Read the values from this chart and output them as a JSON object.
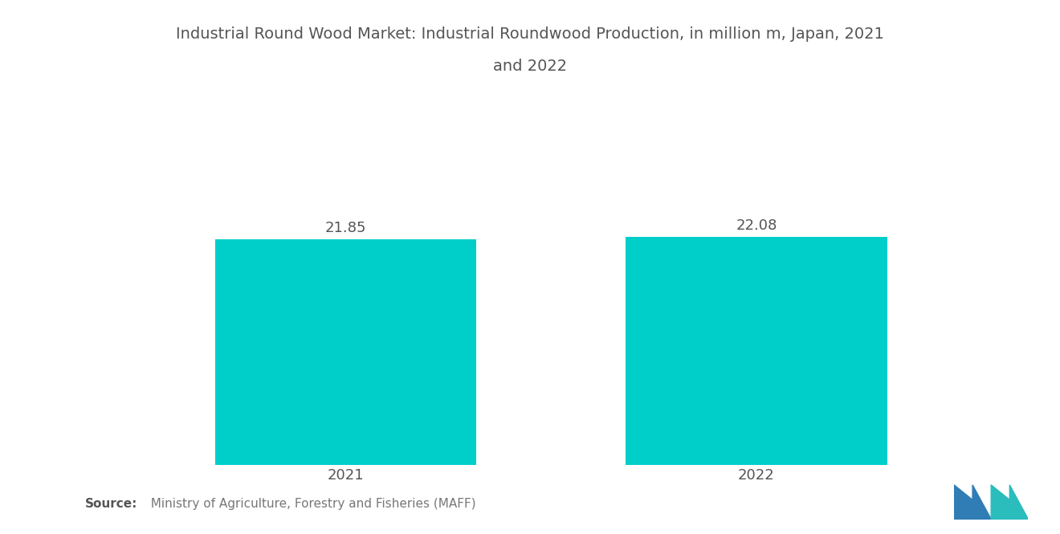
{
  "title_line1": "Industrial Round Wood Market: Industrial Roundwood Production, in million m, Japan, 2021",
  "title_line2": "and 2022",
  "categories": [
    "2021",
    "2022"
  ],
  "values": [
    21.85,
    22.08
  ],
  "bar_color": "#00CEC9",
  "bar_width": 0.28,
  "value_labels": [
    "21.85",
    "22.08"
  ],
  "source_text": "  Ministry of Agriculture, Forestry and Fisheries (MAFF)",
  "source_label": "Source:",
  "background_color": "#ffffff",
  "title_fontsize": 14,
  "label_fontsize": 13,
  "value_fontsize": 13,
  "source_fontsize": 11,
  "ylim": [
    0,
    30
  ],
  "bar_positions": [
    0.28,
    0.72
  ],
  "xlim": [
    0,
    1
  ]
}
